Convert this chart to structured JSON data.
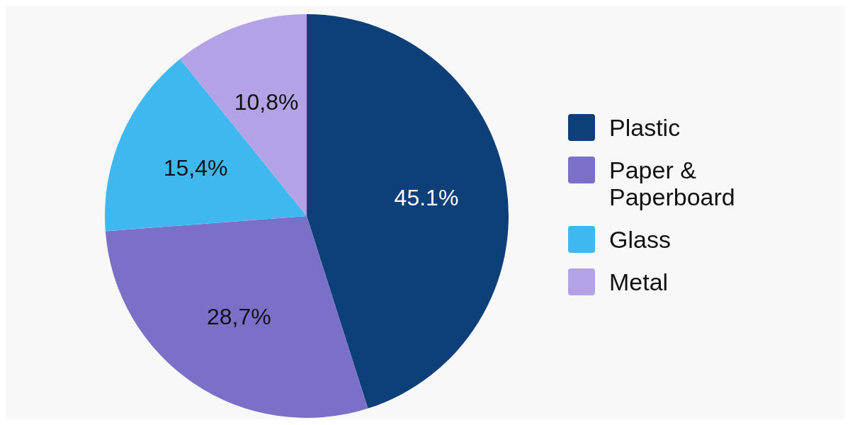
{
  "chart_data": {
    "type": "pie",
    "categories": [
      "Plastic",
      "Paper & Paperboard",
      "Glass",
      "Metal"
    ],
    "values": [
      45.1,
      28.7,
      15.4,
      10.8
    ],
    "value_labels": [
      "45.1%",
      "28,7%",
      "15,4%",
      "10,8%"
    ],
    "colors": [
      "#0d4079",
      "#7a70c8",
      "#3fb8f0",
      "#b3a3e6"
    ],
    "legend": "right"
  }
}
